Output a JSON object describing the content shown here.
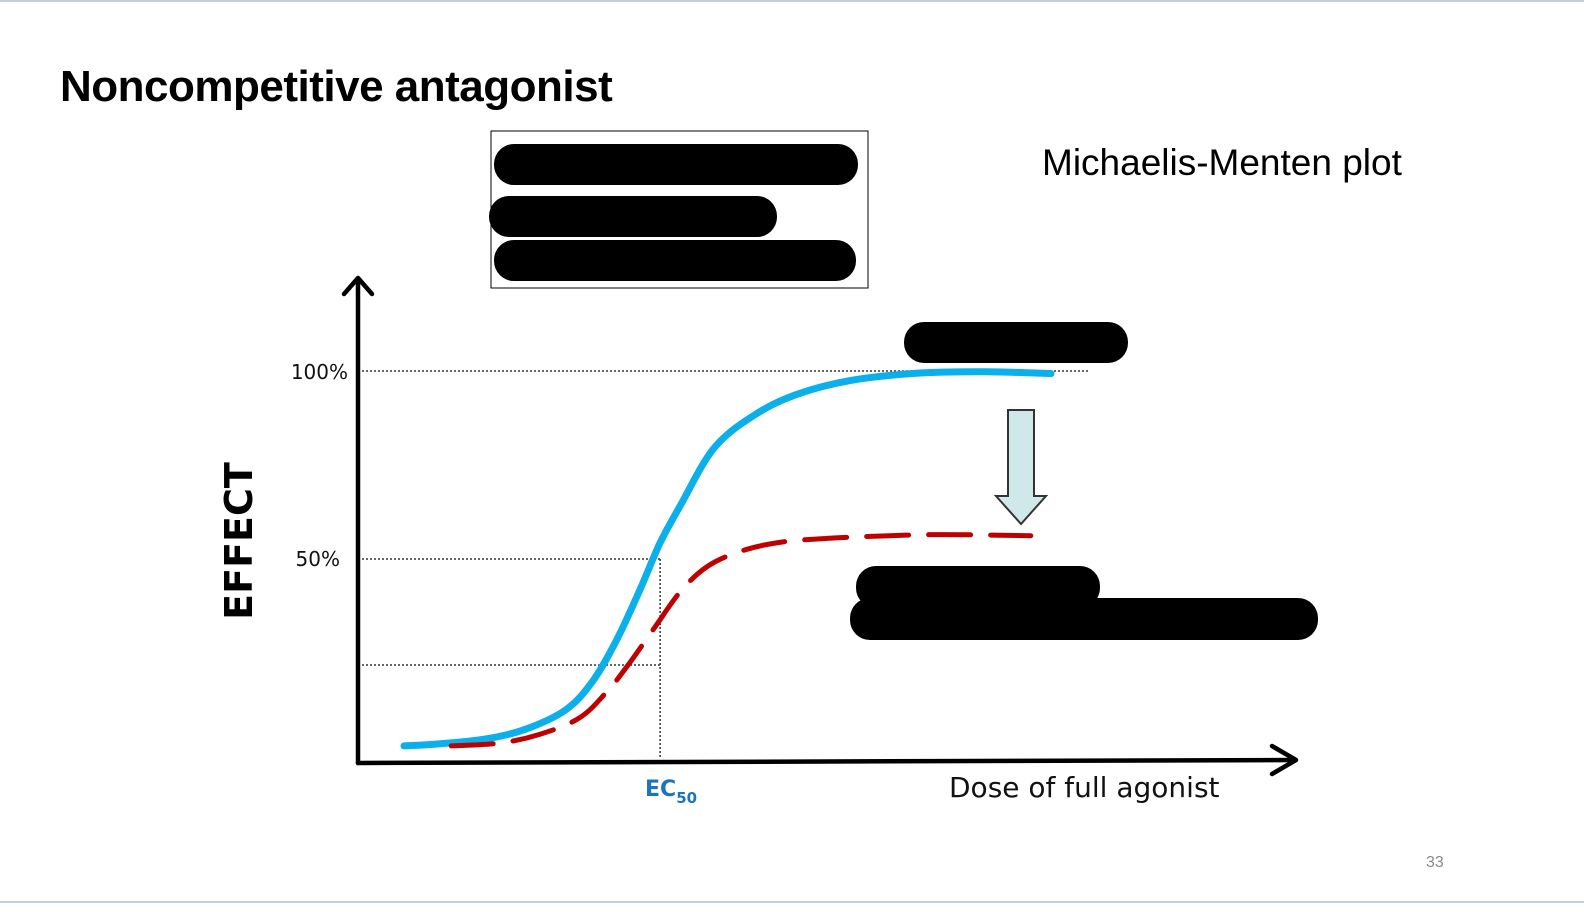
{
  "slide": {
    "title": "Noncompetitive antagonist",
    "subtitle": "Michaelis-Menten plot",
    "page_number": "33"
  },
  "chart_data": {
    "type": "line",
    "xlabel": "Dose of full agonist",
    "ylabel": "EFFECT",
    "x_marker_label": "EC",
    "x_marker_subscript": "50",
    "yticks": [
      {
        "value": 100,
        "label": "100%"
      },
      {
        "value": 50,
        "label": "50%"
      }
    ],
    "ylim": [
      0,
      100
    ],
    "grid": false,
    "series": [
      {
        "style": "solid",
        "color": "#0bb0ea",
        "points": [
          [
            0.0,
            0.3
          ],
          [
            0.05,
            0.8
          ],
          [
            0.12,
            2.1
          ],
          [
            0.18,
            4.7
          ],
          [
            0.24,
            9.9
          ],
          [
            0.28,
            17.5
          ],
          [
            0.315,
            28.3
          ],
          [
            0.35,
            41.8
          ],
          [
            0.38,
            54.3
          ],
          [
            0.41,
            64.2
          ],
          [
            0.46,
            79.5
          ],
          [
            0.52,
            88.3
          ],
          [
            0.58,
            93.6
          ],
          [
            0.66,
            97.4
          ],
          [
            0.76,
            99.4
          ],
          [
            0.86,
            99.8
          ],
          [
            0.96,
            99.3
          ]
        ]
      },
      {
        "style": "dashed",
        "color": "#c00000",
        "points": [
          [
            0.07,
            0.3
          ],
          [
            0.14,
            1.0
          ],
          [
            0.2,
            3.3
          ],
          [
            0.26,
            7.7
          ],
          [
            0.3,
            14.5
          ],
          [
            0.33,
            21.2
          ],
          [
            0.37,
            31.3
          ],
          [
            0.41,
            41.3
          ],
          [
            0.45,
            48.0
          ],
          [
            0.5,
            52.1
          ],
          [
            0.56,
            54.5
          ],
          [
            0.64,
            55.6
          ],
          [
            0.72,
            56.2
          ],
          [
            0.8,
            56.5
          ],
          [
            0.93,
            56.2
          ]
        ]
      }
    ],
    "reference_lines": {
      "horizontal": [
        100,
        50,
        21.8
      ],
      "vertical_x": 0.38
    },
    "annotation": {
      "type": "arrow-down",
      "fill": "#cfe8e9",
      "stroke": "#333333"
    },
    "redaction_color": "#000000"
  }
}
